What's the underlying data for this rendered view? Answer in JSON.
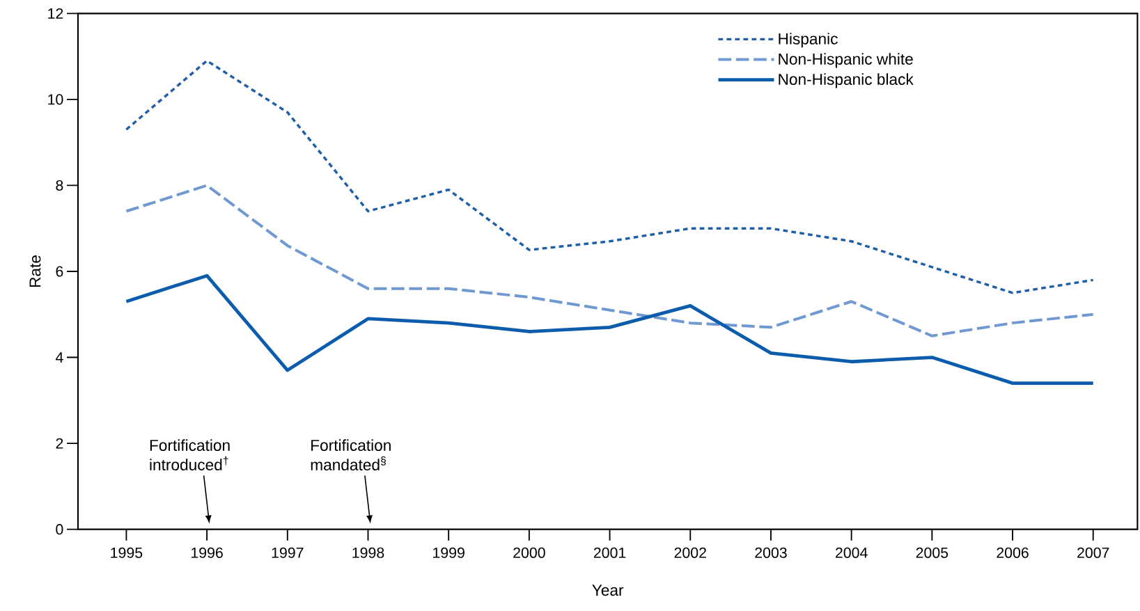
{
  "chart_data": {
    "type": "line",
    "xlabel": "Year",
    "ylabel": "Rate",
    "x": [
      1995,
      1996,
      1997,
      1998,
      1999,
      2000,
      2001,
      2002,
      2003,
      2004,
      2005,
      2006,
      2007
    ],
    "series": [
      {
        "name": "Hispanic",
        "color": "#1f5fa8",
        "line_style": "dotted",
        "values": [
          9.3,
          10.9,
          9.7,
          7.4,
          7.9,
          6.5,
          6.7,
          7.0,
          7.0,
          6.7,
          6.1,
          5.5,
          5.8
        ]
      },
      {
        "name": "Non-Hispanic white",
        "color": "#6f99d0",
        "line_style": "dashed",
        "values": [
          7.4,
          8.0,
          6.6,
          5.6,
          5.6,
          5.4,
          5.1,
          4.8,
          4.7,
          5.3,
          4.5,
          4.8,
          5.0
        ]
      },
      {
        "name": "Non-Hispanic black",
        "color": "#0b5cad",
        "line_style": "solid",
        "values": [
          5.3,
          5.9,
          3.7,
          4.9,
          4.8,
          4.6,
          4.7,
          5.2,
          4.1,
          3.9,
          4.0,
          3.4,
          3.4
        ]
      }
    ],
    "xlim": [
      1994.4,
      2007.55
    ],
    "ylim": [
      0,
      12
    ],
    "xticks": [
      1995,
      1996,
      1997,
      1998,
      1999,
      2000,
      2001,
      2002,
      2003,
      2004,
      2005,
      2006,
      2007
    ],
    "yticks": [
      0,
      2,
      4,
      6,
      8,
      10,
      12
    ],
    "grid": false,
    "legend": "top right",
    "annotations": [
      "Fortification introduced$^{†}$",
      "Fortification mandated$^{§}$"
    ]
  }
}
